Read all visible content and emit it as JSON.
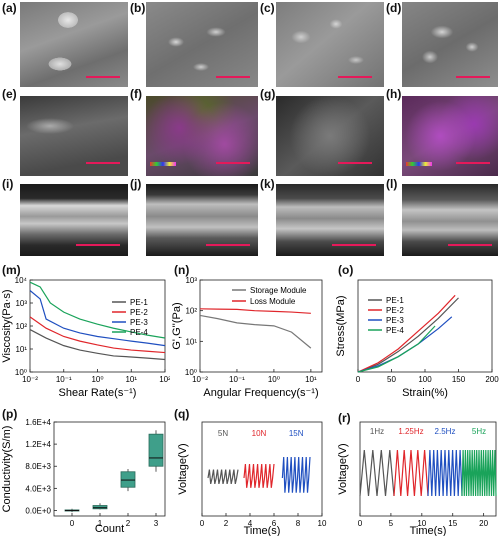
{
  "labels": {
    "a": "(a)",
    "b": "(b)",
    "c": "(c)",
    "d": "(d)",
    "e": "(e)",
    "f": "(f)",
    "g": "(g)",
    "h": "(h)",
    "i": "(i)",
    "j": "(j)",
    "k": "(k)",
    "l": "(l)",
    "m": "(m)",
    "n": "(n)",
    "o": "(o)",
    "p": "(p)",
    "q": "(q)",
    "r": "(r)"
  },
  "colors": {
    "scale_bar": "#e5195a",
    "PE-1": "#555555",
    "PE-2": "#e0262b",
    "PE-3": "#1f4fc0",
    "PE-4": "#1aa35a",
    "storage": "#777777",
    "loss": "#e0262b",
    "box_fill": "#3f9f8a"
  },
  "chart_data": [
    {
      "panel": "m",
      "type": "line",
      "xlabel": "Shear Rate(s⁻¹)",
      "ylabel": "Viscosity(Pa·s)",
      "xscale": "log",
      "yscale": "log",
      "xlim": [
        0.01,
        100
      ],
      "ylim": [
        1,
        10000
      ],
      "xticks": [
        "10⁻²",
        "10⁻¹",
        "10⁰",
        "10¹",
        "10²"
      ],
      "yticks": [
        "10⁰",
        "10¹",
        "10²",
        "10³",
        "10⁴"
      ],
      "legend": "right",
      "series": [
        {
          "name": "PE-1",
          "x": [
            0.01,
            0.03,
            0.1,
            0.3,
            1,
            3,
            10,
            30,
            100
          ],
          "y": [
            70,
            30,
            14,
            9,
            6.5,
            5,
            4.5,
            4,
            3.5
          ]
        },
        {
          "name": "PE-2",
          "x": [
            0.01,
            0.03,
            0.1,
            0.3,
            1,
            3,
            10,
            30,
            100
          ],
          "y": [
            250,
            80,
            35,
            22,
            15,
            11,
            9,
            8,
            7
          ]
        },
        {
          "name": "PE-3",
          "x": [
            0.01,
            0.02,
            0.03,
            0.1,
            0.3,
            1,
            3,
            10,
            30,
            100
          ],
          "y": [
            3500,
            1500,
            200,
            80,
            50,
            35,
            28,
            22,
            18,
            14
          ]
        },
        {
          "name": "PE-4",
          "x": [
            0.01,
            0.02,
            0.04,
            0.1,
            0.3,
            1,
            3,
            10,
            30,
            100
          ],
          "y": [
            8000,
            5000,
            1000,
            400,
            200,
            120,
            80,
            55,
            40,
            30
          ]
        }
      ]
    },
    {
      "panel": "n",
      "type": "line",
      "xlabel": "Angular Frequency(s⁻¹)",
      "ylabel": "G',G''(Pa)",
      "xscale": "log",
      "yscale": "log",
      "xlim": [
        0.01,
        20
      ],
      "ylim": [
        1,
        1000
      ],
      "xticks": [
        "10⁻²",
        "10⁻¹",
        "10⁰",
        "10¹"
      ],
      "yticks": [
        "10⁰",
        "10¹",
        "10²",
        "10³"
      ],
      "legend": "top-right",
      "series": [
        {
          "name": "Storage Module",
          "x": [
            0.01,
            0.03,
            0.1,
            0.3,
            1,
            3,
            10
          ],
          "y": [
            70,
            55,
            40,
            35,
            32,
            20,
            6
          ]
        },
        {
          "name": "Loss Module",
          "x": [
            0.01,
            0.03,
            0.1,
            0.3,
            1,
            3,
            10
          ],
          "y": [
            115,
            112,
            110,
            100,
            95,
            90,
            82
          ]
        }
      ]
    },
    {
      "panel": "o",
      "type": "line",
      "xlabel": "Strain(%)",
      "ylabel": "Stress(MPa)",
      "xlim": [
        0,
        200
      ],
      "ylim": [
        0,
        1.8
      ],
      "xticks": [
        "0",
        "50",
        "100",
        "150",
        "200"
      ],
      "legend": "top-left",
      "series": [
        {
          "name": "PE-1",
          "x": [
            0,
            30,
            60,
            90,
            120,
            150
          ],
          "y": [
            0,
            0.15,
            0.4,
            0.7,
            1.05,
            1.45
          ]
        },
        {
          "name": "PE-2",
          "x": [
            0,
            30,
            60,
            90,
            120,
            145
          ],
          "y": [
            0,
            0.18,
            0.45,
            0.8,
            1.15,
            1.5
          ]
        },
        {
          "name": "PE-3",
          "x": [
            0,
            30,
            60,
            90,
            120,
            140
          ],
          "y": [
            0,
            0.12,
            0.3,
            0.55,
            0.85,
            1.08
          ]
        },
        {
          "name": "PE-4",
          "x": [
            0,
            30,
            60,
            90,
            115
          ],
          "y": [
            0,
            0.1,
            0.3,
            0.55,
            0.9
          ]
        }
      ]
    },
    {
      "panel": "p",
      "type": "box",
      "xlabel": "Count",
      "ylabel": "Conductivity(S/m)",
      "xticks": [
        "0",
        "1",
        "2",
        "3"
      ],
      "yticks": [
        "0.0E+0",
        "4.0E+3",
        "8.0E+3",
        "1.2E+4",
        "1.6E+4"
      ],
      "ylim": [
        -1000,
        16000
      ],
      "boxes": [
        {
          "x": 0,
          "min": -300,
          "q1": -100,
          "median": 0,
          "q3": 100,
          "max": 300
        },
        {
          "x": 1,
          "min": 200,
          "q1": 300,
          "median": 500,
          "q3": 900,
          "max": 1300
        },
        {
          "x": 2,
          "min": 3500,
          "q1": 4200,
          "median": 5500,
          "q3": 7000,
          "max": 7500
        },
        {
          "x": 3,
          "min": 7000,
          "q1": 8000,
          "median": 9500,
          "q3": 13800,
          "max": 14500
        }
      ]
    },
    {
      "panel": "q",
      "type": "line",
      "xlabel": "Time(s)",
      "ylabel": "Voltage(V)",
      "xlim": [
        0,
        10
      ],
      "xticks": [
        "0",
        "2",
        "4",
        "6",
        "8",
        "10"
      ],
      "annotations": [
        "5N",
        "10N",
        "15N"
      ],
      "series": [
        {
          "name": "5N",
          "x": [
            0.5,
            3
          ],
          "amplitude": 0.6
        },
        {
          "name": "10N",
          "x": [
            3.5,
            6
          ],
          "amplitude": 1.0
        },
        {
          "name": "15N",
          "x": [
            6.7,
            9
          ],
          "amplitude": 1.5
        }
      ]
    },
    {
      "panel": "r",
      "type": "line",
      "xlabel": "Time(s)",
      "ylabel": "Voltage(V)",
      "xlim": [
        0,
        22
      ],
      "xticks": [
        "0",
        "5",
        "10",
        "15",
        "20"
      ],
      "annotations": [
        "1Hz",
        "1.25Hz",
        "2.5Hz",
        "5Hz"
      ],
      "series": [
        {
          "name": "1Hz",
          "x": [
            0,
            5.5
          ]
        },
        {
          "name": "1.25Hz",
          "x": [
            5.5,
            11
          ]
        },
        {
          "name": "2.5Hz",
          "x": [
            11,
            16.5
          ]
        },
        {
          "name": "5Hz",
          "x": [
            16.5,
            22
          ]
        }
      ]
    }
  ]
}
